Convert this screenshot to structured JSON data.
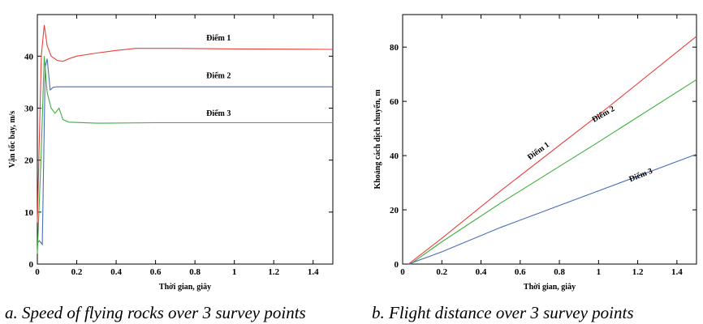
{
  "chart_data": [
    {
      "type": "line",
      "caption": "a. Speed of flying rocks over 3 survey points",
      "xlabel": "Thời gian, giây",
      "ylabel": "Vận tốc bay, m/s",
      "xlim": [
        0,
        1.5
      ],
      "ylim": [
        0,
        48
      ],
      "xticks": [
        0,
        0.2,
        0.4,
        0.6,
        0.8,
        1,
        1.2,
        1.4
      ],
      "xtick_labels": [
        "0",
        "0.2",
        "0.4",
        "0.6",
        "0.8",
        "1",
        "1.2",
        "1.4"
      ],
      "yticks": [
        0,
        10,
        20,
        30,
        40
      ],
      "ytick_labels": [
        "0",
        "10",
        "20",
        "30",
        "40"
      ],
      "grid": false,
      "series": [
        {
          "name": "Điểm 1",
          "color": "#e8413c",
          "x": [
            0,
            0.02,
            0.035,
            0.05,
            0.07,
            0.1,
            0.13,
            0.16,
            0.2,
            0.3,
            0.4,
            0.5,
            0.7,
            1.0,
            1.5
          ],
          "y": [
            8,
            40,
            46,
            42,
            40,
            39.2,
            39.0,
            39.5,
            40.0,
            40.6,
            41.1,
            41.5,
            41.5,
            41.4,
            41.3
          ]
        },
        {
          "name": "Điểm 2",
          "color": "#4a6fb3",
          "x": [
            0,
            0.01,
            0.025,
            0.04,
            0.05,
            0.065,
            0.08,
            0.1,
            0.2,
            0.5,
            1.0,
            1.5
          ],
          "y": [
            4,
            4.5,
            3.8,
            38,
            39.5,
            33.5,
            34,
            34.1,
            34.1,
            34.1,
            34.1,
            34.1
          ]
        },
        {
          "name": "Điểm 3",
          "color": "#3fae3f",
          "x": [
            0,
            0.02,
            0.035,
            0.05,
            0.07,
            0.09,
            0.11,
            0.13,
            0.16,
            0.3,
            0.6,
            1.0,
            1.5
          ],
          "y": [
            2,
            22,
            40,
            33,
            30,
            29,
            30,
            27.8,
            27.3,
            27.1,
            27.2,
            27.2,
            27.2
          ]
        }
      ]
    },
    {
      "type": "line",
      "caption": "b. Flight distance over 3 survey points",
      "xlabel": "Thời gian, giây",
      "ylabel": "Khoảng cách dịch chuyển, m",
      "xlim": [
        0,
        1.5
      ],
      "ylim": [
        0,
        92
      ],
      "xticks": [
        0,
        0.2,
        0.4,
        0.6,
        0.8,
        1,
        1.2,
        1.4
      ],
      "xtick_labels": [
        "0",
        "0.2",
        "0.4",
        "0.6",
        "0.8",
        "1",
        "1.2",
        "1.4"
      ],
      "yticks": [
        0,
        20,
        40,
        60,
        80
      ],
      "ytick_labels": [
        "0",
        "20",
        "40",
        "60",
        "80"
      ],
      "grid": false,
      "series": [
        {
          "name": "Điểm 1",
          "color": "#e8413c",
          "x": [
            0.03,
            0.2,
            0.5,
            1.0,
            1.5
          ],
          "y": [
            0,
            9.5,
            27,
            55,
            84
          ]
        },
        {
          "name": "Điểm 2",
          "color": "#3fae3f",
          "x": [
            0.04,
            0.2,
            0.5,
            1.0,
            1.5
          ],
          "y": [
            0,
            8.2,
            22.5,
            45,
            68
          ]
        },
        {
          "name": "Điểm 3",
          "color": "#4a6fb3",
          "x": [
            0.03,
            0.2,
            0.5,
            1.0,
            1.5
          ],
          "y": [
            0,
            4.5,
            13.5,
            27,
            40.5
          ]
        }
      ]
    }
  ]
}
